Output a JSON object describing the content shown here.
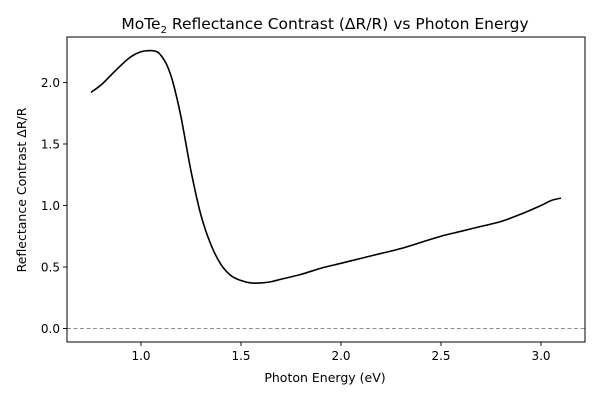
{
  "chart_data": {
    "type": "line",
    "title_main": "MoTe",
    "title_subscript": "2",
    "title_rest": " Reflectance Contrast (ΔR/R) vs Photon Energy",
    "xlabel": "Photon Energy (eV)",
    "ylabel": "Reflectance Contrast ΔR/R",
    "xlim": [
      0.63,
      3.22
    ],
    "ylim": [
      -0.11,
      2.37
    ],
    "xticks": [
      1.0,
      1.5,
      2.0,
      2.5,
      3.0
    ],
    "xtick_labels": [
      "1.0",
      "1.5",
      "2.0",
      "2.5",
      "3.0"
    ],
    "yticks": [
      0.0,
      0.5,
      1.0,
      1.5,
      2.0
    ],
    "ytick_labels": [
      "0.0",
      "0.5",
      "1.0",
      "1.5",
      "2.0"
    ],
    "grid": false,
    "reference_line": {
      "y": 0.0,
      "style": "dashed",
      "color": "#808080"
    },
    "series": [
      {
        "color": "#000000",
        "x": [
          0.75,
          0.8,
          0.85,
          0.9,
          0.95,
          1.0,
          1.05,
          1.08,
          1.1,
          1.13,
          1.16,
          1.2,
          1.25,
          1.3,
          1.35,
          1.4,
          1.45,
          1.5,
          1.55,
          1.6,
          1.65,
          1.7,
          1.8,
          1.9,
          2.0,
          2.1,
          2.2,
          2.3,
          2.4,
          2.5,
          2.6,
          2.7,
          2.8,
          2.9,
          3.0,
          3.05,
          3.1
        ],
        "y": [
          1.92,
          1.98,
          2.06,
          2.14,
          2.21,
          2.25,
          2.26,
          2.25,
          2.22,
          2.14,
          2.0,
          1.72,
          1.28,
          0.92,
          0.68,
          0.52,
          0.43,
          0.39,
          0.37,
          0.37,
          0.38,
          0.4,
          0.44,
          0.49,
          0.53,
          0.57,
          0.61,
          0.65,
          0.7,
          0.75,
          0.79,
          0.83,
          0.87,
          0.93,
          1.0,
          1.04,
          1.06
        ]
      }
    ]
  }
}
